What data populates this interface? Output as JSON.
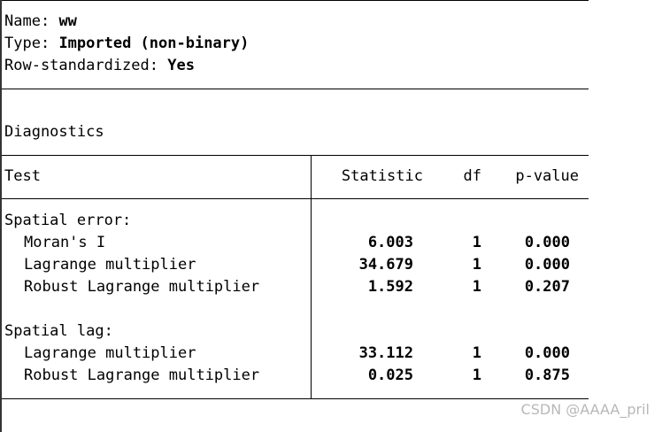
{
  "weights_info": {
    "name_label": "Name:",
    "name_value": "ww",
    "type_label": "Type:",
    "type_value": "Imported (non-binary)",
    "rowstd_label": "Row-standardized:",
    "rowstd_value": "Yes"
  },
  "section_title": "Diagnostics",
  "table": {
    "columns": [
      "Test",
      "Statistic",
      "df",
      "p-value"
    ],
    "groups": [
      {
        "label": "Spatial error:",
        "rows": [
          {
            "test": "Moran's I",
            "statistic": "6.003",
            "df": "1",
            "p": "0.000"
          },
          {
            "test": "Lagrange multiplier",
            "statistic": "34.679",
            "df": "1",
            "p": "0.000"
          },
          {
            "test": "Robust Lagrange multiplier",
            "statistic": "1.592",
            "df": "1",
            "p": "0.207"
          }
        ]
      },
      {
        "label": "Spatial lag:",
        "rows": [
          {
            "test": "Lagrange multiplier",
            "statistic": "33.112",
            "df": "1",
            "p": "0.000"
          },
          {
            "test": "Robust Lagrange multiplier",
            "statistic": "0.025",
            "df": "1",
            "p": "0.875"
          }
        ]
      }
    ]
  },
  "watermark": "CSDN @AAAA_pril"
}
